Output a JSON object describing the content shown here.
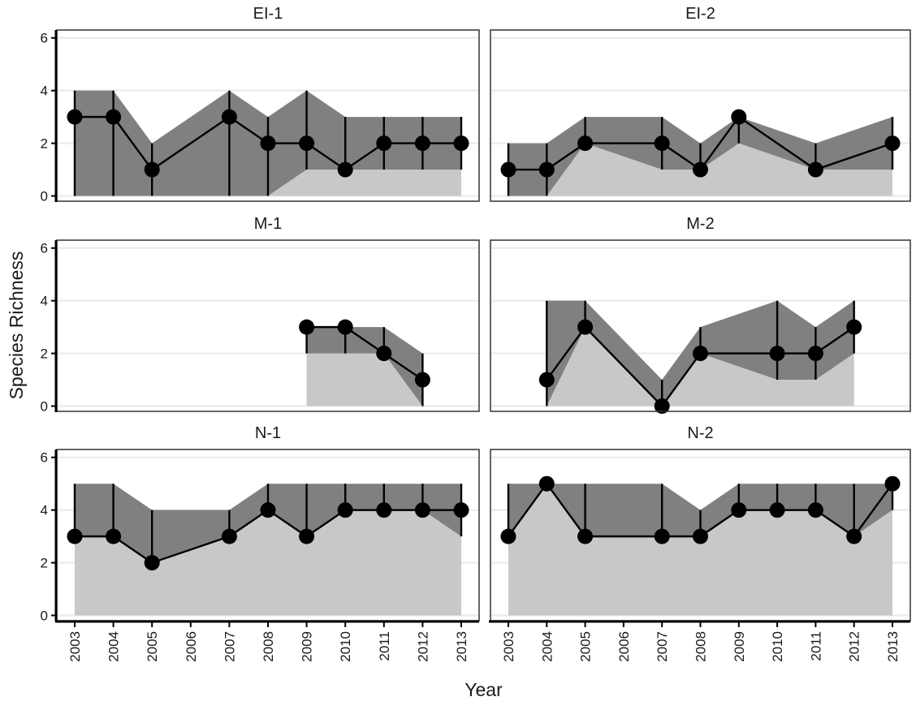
{
  "chart_data": {
    "type": "line",
    "xlabel": "Year",
    "ylabel": "Species Richness",
    "x_ticks": [
      "2003",
      "2004",
      "2005",
      "2006",
      "2007",
      "2008",
      "2009",
      "2010",
      "2011",
      "2012",
      "2013"
    ],
    "y_ticks": [
      "0",
      "2",
      "4",
      "6"
    ],
    "ylim": [
      -0.2,
      6.3
    ],
    "grid": true,
    "colors": {
      "range_fill": "#808080",
      "lower_fill": "#c8c8c8",
      "line": "#000000",
      "point": "#000000",
      "grid": "#ebebeb",
      "panel_border": "#333333"
    },
    "panels": [
      {
        "title": "EI-1",
        "points": [
          {
            "x": 2003,
            "y": 3,
            "lo": 0,
            "hi": 4
          },
          {
            "x": 2004,
            "y": 3,
            "lo": 0,
            "hi": 4
          },
          {
            "x": 2005,
            "y": 1,
            "lo": 0,
            "hi": 2
          },
          {
            "x": 2007,
            "y": 3,
            "lo": 0,
            "hi": 4
          },
          {
            "x": 2008,
            "y": 2,
            "lo": 0,
            "hi": 3
          },
          {
            "x": 2009,
            "y": 2,
            "lo": 1,
            "hi": 4
          },
          {
            "x": 2010,
            "y": 1,
            "lo": 1,
            "hi": 3
          },
          {
            "x": 2011,
            "y": 2,
            "lo": 1,
            "hi": 3
          },
          {
            "x": 2012,
            "y": 2,
            "lo": 1,
            "hi": 3
          },
          {
            "x": 2013,
            "y": 2,
            "lo": 1,
            "hi": 3
          }
        ]
      },
      {
        "title": "EI-2",
        "points": [
          {
            "x": 2003,
            "y": 1,
            "lo": 0,
            "hi": 2
          },
          {
            "x": 2004,
            "y": 1,
            "lo": 0,
            "hi": 2
          },
          {
            "x": 2005,
            "y": 2,
            "lo": 2,
            "hi": 3
          },
          {
            "x": 2007,
            "y": 2,
            "lo": 1,
            "hi": 3
          },
          {
            "x": 2008,
            "y": 1,
            "lo": 1,
            "hi": 2
          },
          {
            "x": 2009,
            "y": 3,
            "lo": 2,
            "hi": 3
          },
          {
            "x": 2011,
            "y": 1,
            "lo": 1,
            "hi": 2
          },
          {
            "x": 2013,
            "y": 2,
            "lo": 1,
            "hi": 3
          }
        ]
      },
      {
        "title": "M-1",
        "points": [
          {
            "x": 2009,
            "y": 3,
            "lo": 2,
            "hi": 3
          },
          {
            "x": 2010,
            "y": 3,
            "lo": 2,
            "hi": 3
          },
          {
            "x": 2011,
            "y": 2,
            "lo": 2,
            "hi": 3
          },
          {
            "x": 2012,
            "y": 1,
            "lo": 0,
            "hi": 2
          }
        ]
      },
      {
        "title": "M-2",
        "points": [
          {
            "x": 2004,
            "y": 1,
            "lo": 0,
            "hi": 4
          },
          {
            "x": 2005,
            "y": 3,
            "lo": 3,
            "hi": 4
          },
          {
            "x": 2007,
            "y": 0,
            "lo": 0,
            "hi": 1
          },
          {
            "x": 2008,
            "y": 2,
            "lo": 2,
            "hi": 3
          },
          {
            "x": 2010,
            "y": 2,
            "lo": 1,
            "hi": 4
          },
          {
            "x": 2011,
            "y": 2,
            "lo": 1,
            "hi": 3
          },
          {
            "x": 2012,
            "y": 3,
            "lo": 2,
            "hi": 4
          }
        ]
      },
      {
        "title": "N-1",
        "points": [
          {
            "x": 2003,
            "y": 3,
            "lo": 3,
            "hi": 5
          },
          {
            "x": 2004,
            "y": 3,
            "lo": 3,
            "hi": 5
          },
          {
            "x": 2005,
            "y": 2,
            "lo": 2,
            "hi": 4
          },
          {
            "x": 2007,
            "y": 3,
            "lo": 3,
            "hi": 4
          },
          {
            "x": 2008,
            "y": 4,
            "lo": 4,
            "hi": 5
          },
          {
            "x": 2009,
            "y": 3,
            "lo": 3,
            "hi": 5
          },
          {
            "x": 2010,
            "y": 4,
            "lo": 4,
            "hi": 5
          },
          {
            "x": 2011,
            "y": 4,
            "lo": 4,
            "hi": 5
          },
          {
            "x": 2012,
            "y": 4,
            "lo": 4,
            "hi": 5
          },
          {
            "x": 2013,
            "y": 4,
            "lo": 3,
            "hi": 5
          }
        ]
      },
      {
        "title": "N-2",
        "points": [
          {
            "x": 2003,
            "y": 3,
            "lo": 3,
            "hi": 5
          },
          {
            "x": 2004,
            "y": 5,
            "lo": 5,
            "hi": 5
          },
          {
            "x": 2005,
            "y": 3,
            "lo": 3,
            "hi": 5
          },
          {
            "x": 2007,
            "y": 3,
            "lo": 3,
            "hi": 5
          },
          {
            "x": 2008,
            "y": 3,
            "lo": 3,
            "hi": 4
          },
          {
            "x": 2009,
            "y": 4,
            "lo": 4,
            "hi": 5
          },
          {
            "x": 2010,
            "y": 4,
            "lo": 4,
            "hi": 5
          },
          {
            "x": 2011,
            "y": 4,
            "lo": 4,
            "hi": 5
          },
          {
            "x": 2012,
            "y": 3,
            "lo": 3,
            "hi": 5
          },
          {
            "x": 2013,
            "y": 5,
            "lo": 4,
            "hi": 5
          }
        ]
      }
    ]
  }
}
